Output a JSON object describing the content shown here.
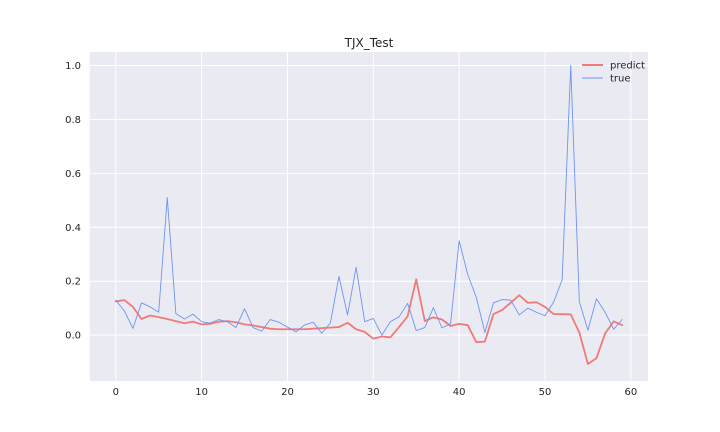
{
  "chart_data": {
    "type": "line",
    "title": "TJX_Test",
    "xlabel": "",
    "ylabel": "",
    "xlim": [
      -3,
      62
    ],
    "ylim": [
      -0.17,
      1.05
    ],
    "xticks": [
      0,
      10,
      20,
      30,
      40,
      50,
      60
    ],
    "yticks": [
      0.0,
      0.2,
      0.4,
      0.6,
      0.8,
      1.0
    ],
    "xtick_labels": [
      "0",
      "10",
      "20",
      "30",
      "40",
      "50",
      "60"
    ],
    "ytick_labels": [
      "0.0",
      "0.2",
      "0.4",
      "0.6",
      "0.8",
      "1.0"
    ],
    "grid": true,
    "legend_position": "top-right",
    "background": "#eaeaf2",
    "x": [
      0,
      1,
      2,
      3,
      4,
      5,
      6,
      7,
      8,
      9,
      10,
      11,
      12,
      13,
      14,
      15,
      16,
      17,
      18,
      19,
      20,
      21,
      22,
      23,
      24,
      25,
      26,
      27,
      28,
      29,
      30,
      31,
      32,
      33,
      34,
      35,
      36,
      37,
      38,
      39,
      40,
      41,
      42,
      43,
      44,
      45,
      46,
      47,
      48,
      49,
      50,
      51,
      52,
      53,
      54,
      55,
      56,
      57,
      58,
      59
    ],
    "series": [
      {
        "name": "predict",
        "color": "#f07a78",
        "width": 1.8,
        "values": [
          0.125,
          0.13,
          0.105,
          0.06,
          0.073,
          0.067,
          0.06,
          0.052,
          0.044,
          0.05,
          0.04,
          0.042,
          0.05,
          0.052,
          0.048,
          0.04,
          0.036,
          0.03,
          0.024,
          0.022,
          0.022,
          0.022,
          0.022,
          0.024,
          0.026,
          0.028,
          0.03,
          0.046,
          0.022,
          0.012,
          -0.013,
          -0.005,
          -0.008,
          0.03,
          0.07,
          0.207,
          0.052,
          0.066,
          0.058,
          0.034,
          0.042,
          0.037,
          -0.026,
          -0.024,
          0.078,
          0.093,
          0.12,
          0.148,
          0.12,
          0.122,
          0.105,
          0.078,
          0.078,
          0.077,
          0.01,
          -0.107,
          -0.085,
          0.006,
          0.051,
          0.037
        ]
      },
      {
        "name": "true",
        "color": "#6e95f0",
        "width": 0.9,
        "values": [
          0.13,
          0.09,
          0.025,
          0.12,
          0.105,
          0.085,
          0.51,
          0.08,
          0.06,
          0.078,
          0.05,
          0.045,
          0.058,
          0.05,
          0.028,
          0.098,
          0.028,
          0.015,
          0.058,
          0.048,
          0.03,
          0.012,
          0.038,
          0.048,
          0.007,
          0.045,
          0.218,
          0.075,
          0.252,
          0.05,
          0.062,
          0.0,
          0.05,
          0.068,
          0.118,
          0.017,
          0.028,
          0.102,
          0.027,
          0.042,
          0.35,
          0.225,
          0.14,
          0.01,
          0.12,
          0.132,
          0.13,
          0.075,
          0.1,
          0.085,
          0.072,
          0.122,
          0.205,
          1.0,
          0.125,
          0.018,
          0.135,
          0.085,
          0.022,
          0.058
        ]
      }
    ]
  }
}
